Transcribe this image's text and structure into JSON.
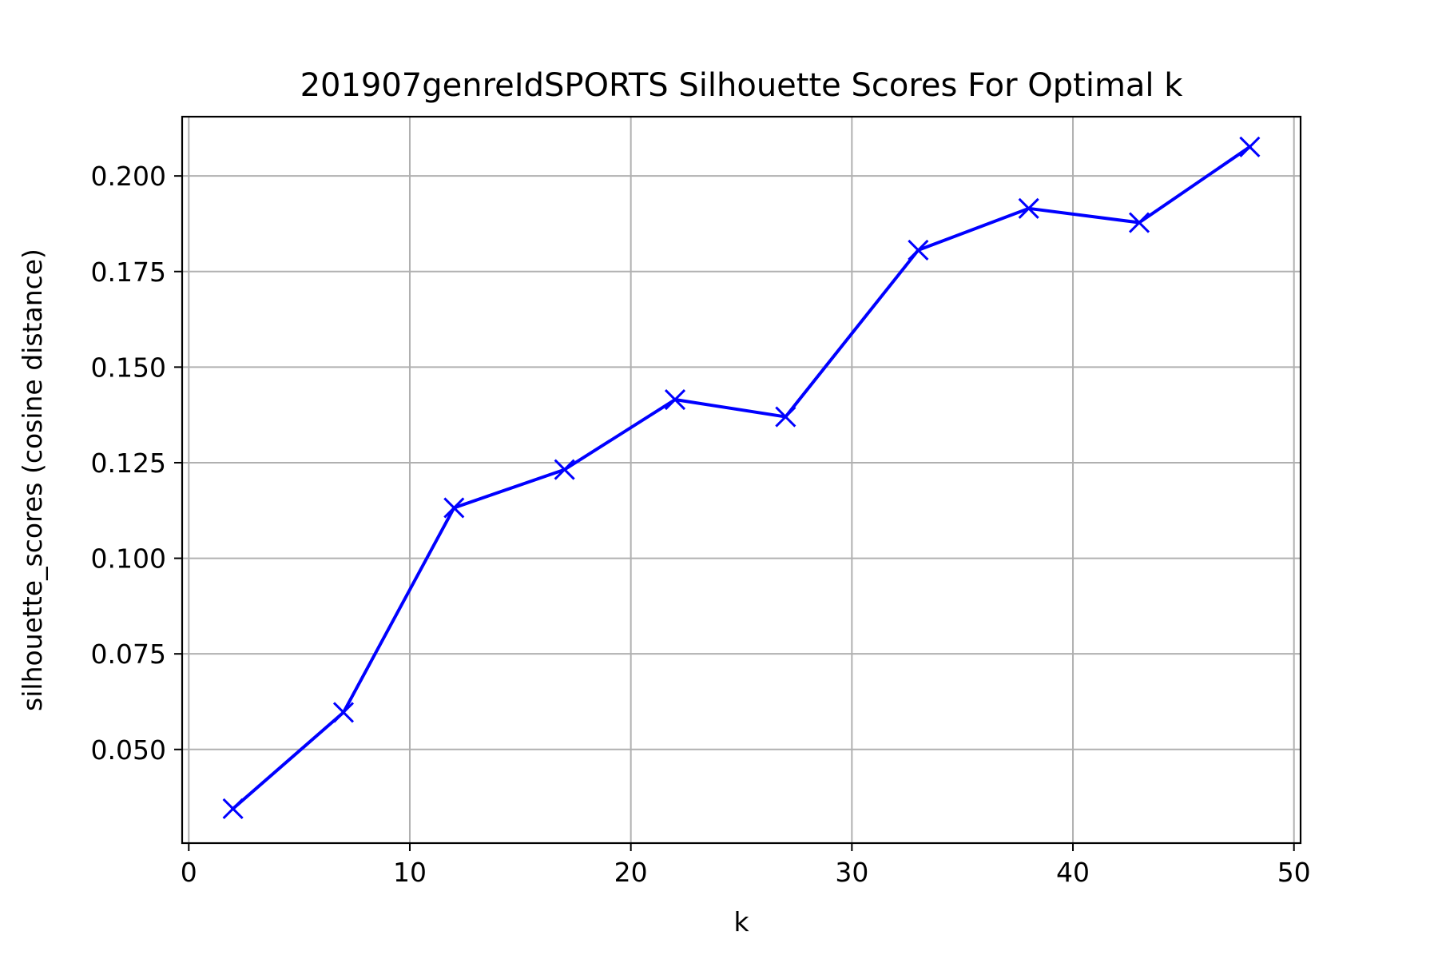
{
  "chart_data": {
    "type": "line",
    "title": "201907genreIdSPORTS Silhouette Scores For Optimal k",
    "xlabel": "k",
    "ylabel": "silhouette_scores (cosine distance)",
    "xlim": [
      -0.3,
      50.3
    ],
    "ylim": [
      0.0255,
      0.2155
    ],
    "x_ticks": [
      0,
      10,
      20,
      30,
      40,
      50
    ],
    "x_tick_labels": [
      "0",
      "10",
      "20",
      "30",
      "40",
      "50"
    ],
    "y_ticks": [
      0.05,
      0.075,
      0.1,
      0.125,
      0.15,
      0.175,
      0.2
    ],
    "y_tick_labels": [
      "0.050",
      "0.075",
      "0.100",
      "0.125",
      "0.150",
      "0.175",
      "0.200"
    ],
    "grid": true,
    "marker": "x",
    "color": "#0000ff",
    "series": [
      {
        "x": [
          2,
          7,
          12,
          17,
          22,
          27,
          33,
          38,
          43,
          48
        ],
        "values": [
          0.0345,
          0.0597,
          0.1132,
          0.1232,
          0.1415,
          0.137,
          0.1806,
          0.1915,
          0.1878,
          0.2076
        ]
      }
    ]
  }
}
